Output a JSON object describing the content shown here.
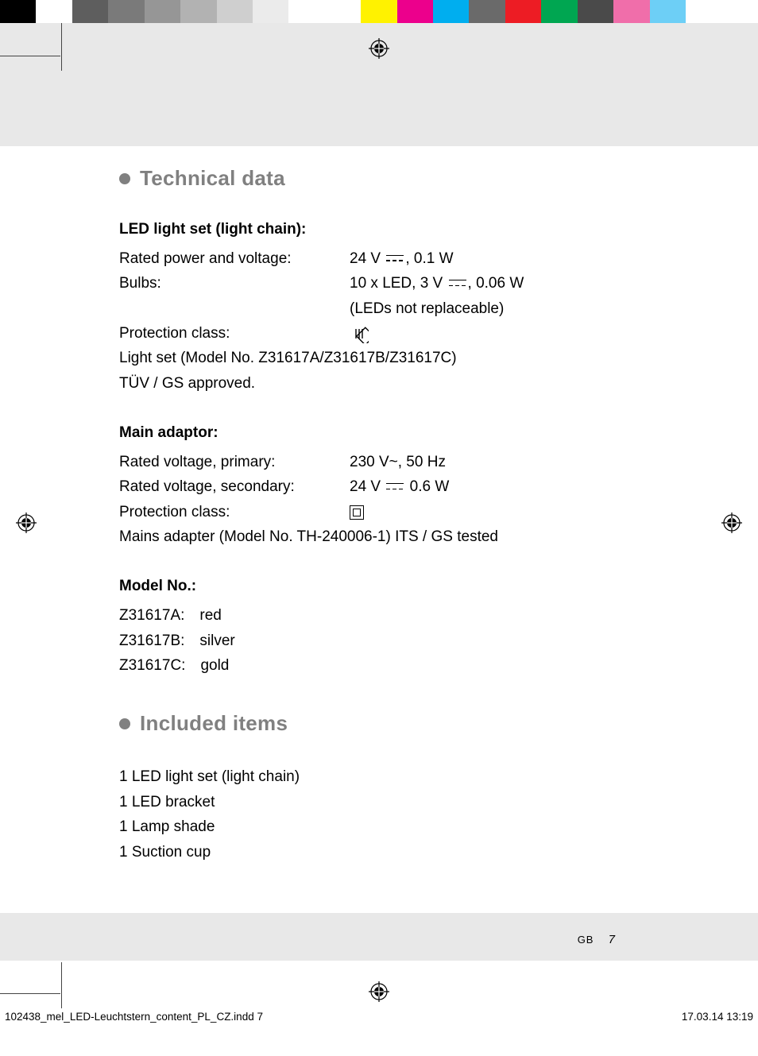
{
  "color_bar": [
    "#000000",
    "#ffffff",
    "#5e5e5e",
    "#7a7a7a",
    "#969696",
    "#b2b2b2",
    "#cfcfcf",
    "#ebebeb",
    "#ffffff",
    "#ffffff",
    "#fff200",
    "#ec008c",
    "#00aeef",
    "#6a6a6a",
    "#ed1c24",
    "#00a651",
    "#4a4a4a",
    "#f06eaa",
    "#6dcff6",
    "#ffffff",
    "#ffffff"
  ],
  "sections": {
    "techdata": {
      "heading": "Technical data",
      "led": {
        "title": "LED light set (light chain):",
        "rated_label": "Rated power and voltage:",
        "rated_value_pre": "24 V ",
        "rated_value_post": ", 0.1 W",
        "bulbs_label": "Bulbs:",
        "bulbs_value_pre": "10 x LED, 3 V ",
        "bulbs_value_post": ", 0.06 W",
        "bulbs_note": "(LEDs not replaceable)",
        "protclass_label": "Protection class:",
        "lightset_model": "Light set (Model No. Z31617A/Z31617B/Z31617C)",
        "tuv": "TÜV / GS approved."
      },
      "adaptor": {
        "title": "Main adaptor:",
        "primary_label": "Rated voltage, primary:",
        "primary_value": "230 V~, 50 Hz",
        "secondary_label": "Rated voltage, secondary:",
        "secondary_value_pre": "24 V ",
        "secondary_value_post": " 0.6 W",
        "protclass_label": "Protection class:",
        "mains": "Mains adapter (Model No. TH-240006-1) ITS / GS tested"
      },
      "model": {
        "title": "Model No.:",
        "a": "Z31617A: red",
        "b": "Z31617B: silver",
        "c": "Z31617C: gold"
      }
    },
    "included": {
      "heading": "Included items",
      "items": [
        "1 LED light set (light chain)",
        "1 LED bracket",
        "1 Lamp shade",
        "1 Suction cup"
      ]
    }
  },
  "page": {
    "lang": "GB",
    "num": "7"
  },
  "footer": {
    "file": "102438_mel_LED-Leuchtstern_content_PL_CZ.indd   7",
    "date": "17.03.14   13:19"
  }
}
